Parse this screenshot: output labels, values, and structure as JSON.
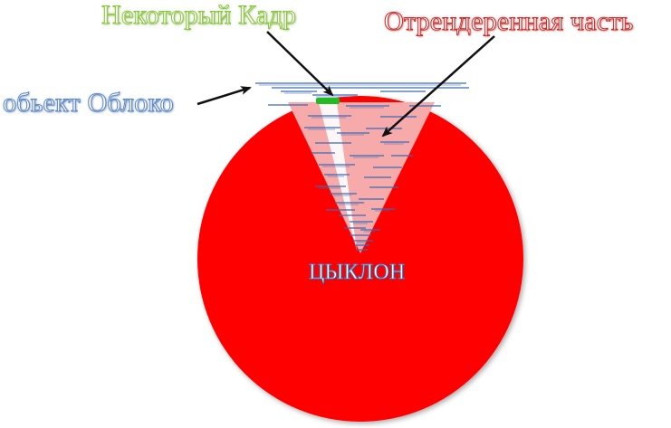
{
  "labels": {
    "frame": "Некоторый Кадр",
    "rendered_part": "Отрендеренная часть",
    "cloud_object": "обьект Облоко",
    "cyclone": "ЦЫКЛОН"
  },
  "colors": {
    "cyclone_disc": "#ff0000",
    "rendered_cone": "#f7aaaa",
    "frame_mark": "#22bb22",
    "cloud_lines": "#3a6ab8",
    "frame_label": "#8cc63f",
    "rendered_label": "#c8302d",
    "cloud_label": "#5b88c6",
    "arrow": "#111111"
  }
}
